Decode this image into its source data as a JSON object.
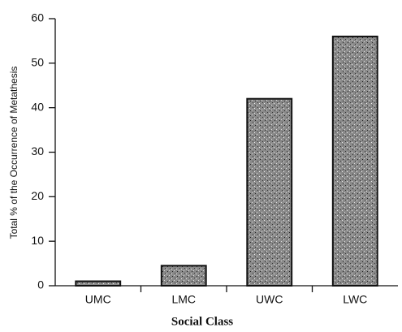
{
  "chart_data": {
    "type": "bar",
    "x_label": "Social Class",
    "y_label": "Total % of the Occurrence of Metathesis",
    "categories": [
      "UMC",
      "LMC",
      "UWC",
      "LWC"
    ],
    "values": [
      1,
      4.5,
      42,
      56
    ],
    "color": "#9a9a9a",
    "ylim": [
      0,
      60
    ],
    "yticks": [
      0,
      10,
      20,
      30,
      40,
      50,
      60
    ],
    "grid": false
  }
}
